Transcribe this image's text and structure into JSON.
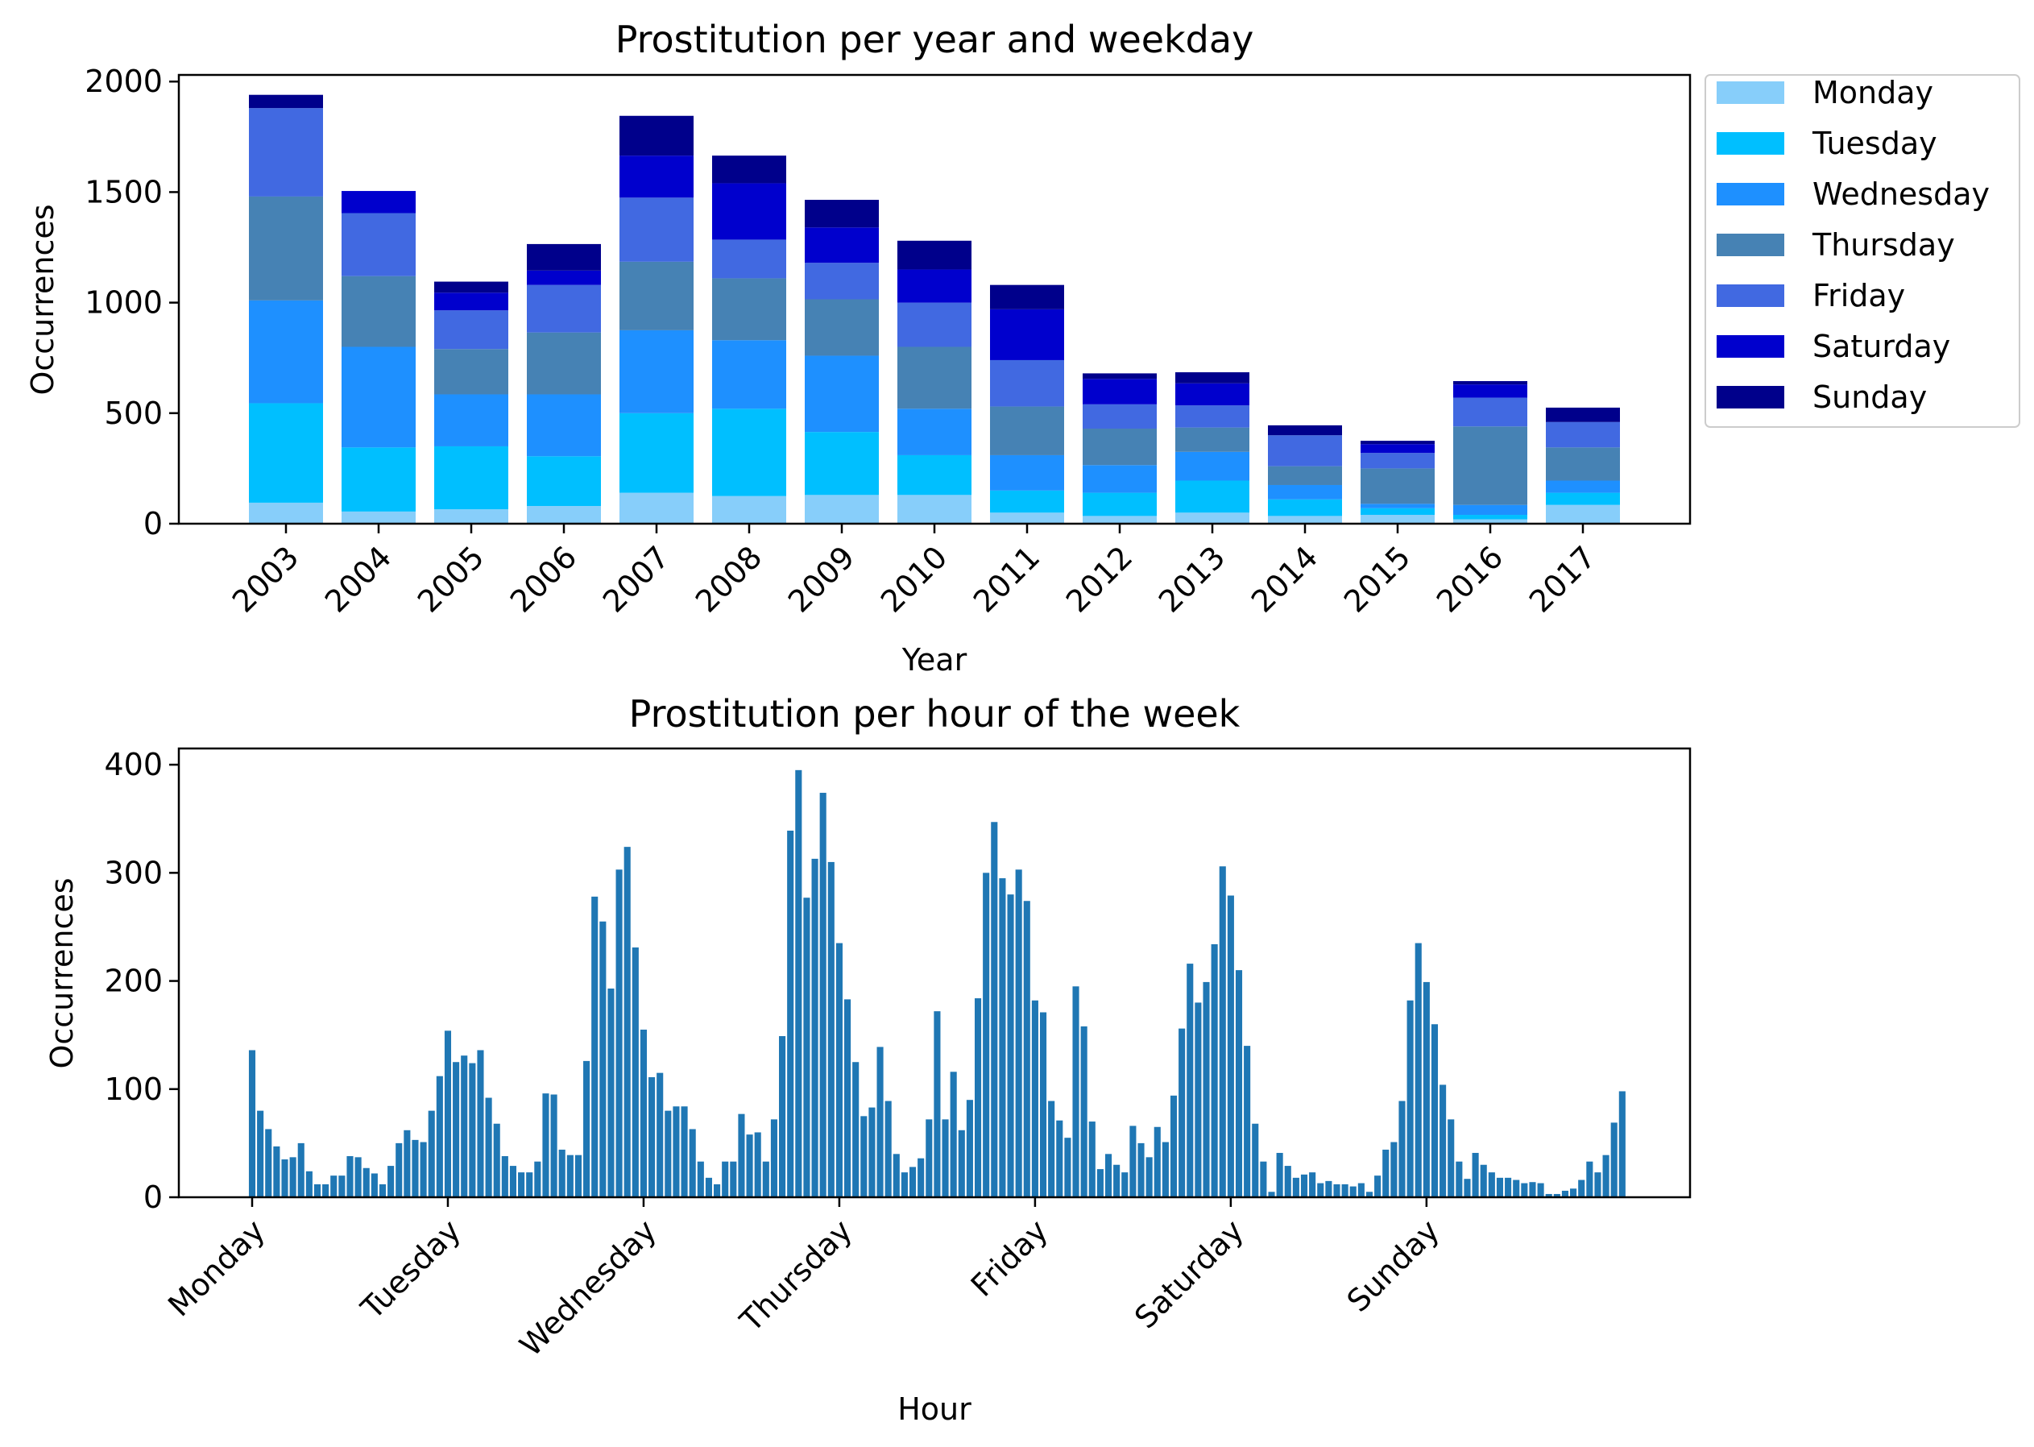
{
  "chart_data": [
    {
      "type": "bar",
      "stacked": true,
      "title": "Prostitution per year and weekday",
      "xlabel": "Year",
      "ylabel": "Occurrences",
      "ylim": [
        0,
        2030
      ],
      "yticks": [
        0,
        500,
        1000,
        1500,
        2000
      ],
      "categories": [
        "2003",
        "2004",
        "2005",
        "2006",
        "2007",
        "2008",
        "2009",
        "2010",
        "2011",
        "2012",
        "2013",
        "2014",
        "2015",
        "2016",
        "2017"
      ],
      "legend_position": "outside-right",
      "grid": false,
      "series": [
        {
          "name": "Monday",
          "color": "#87cefa",
          "values": [
            95,
            55,
            65,
            80,
            140,
            125,
            130,
            130,
            50,
            35,
            50,
            35,
            40,
            20,
            85
          ]
        },
        {
          "name": "Tuesday",
          "color": "#00bfff",
          "values": [
            450,
            290,
            285,
            225,
            360,
            395,
            285,
            180,
            100,
            105,
            145,
            75,
            30,
            20,
            55
          ]
        },
        {
          "name": "Wednesday",
          "color": "#1e90ff",
          "values": [
            465,
            455,
            235,
            280,
            375,
            310,
            345,
            210,
            160,
            125,
            130,
            65,
            20,
            45,
            55
          ]
        },
        {
          "name": "Thursday",
          "color": "#4682b4",
          "values": [
            470,
            320,
            205,
            280,
            310,
            280,
            255,
            280,
            220,
            165,
            110,
            85,
            160,
            355,
            150
          ]
        },
        {
          "name": "Friday",
          "color": "#4169e1",
          "values": [
            400,
            285,
            175,
            215,
            290,
            175,
            165,
            200,
            210,
            110,
            100,
            140,
            70,
            130,
            115
          ]
        },
        {
          "name": "Saturday",
          "color": "#0000cd",
          "values": [
            0,
            100,
            80,
            65,
            190,
            255,
            160,
            150,
            230,
            115,
            100,
            0,
            40,
            60,
            0
          ]
        },
        {
          "name": "Sunday",
          "color": "#00008b",
          "values": [
            60,
            0,
            50,
            120,
            180,
            125,
            125,
            130,
            110,
            25,
            50,
            45,
            15,
            15,
            65
          ]
        }
      ]
    },
    {
      "type": "bar",
      "title": "Prostitution per hour of the week",
      "xlabel": "Hour",
      "ylabel": "Occurrences",
      "ylim": [
        0,
        415
      ],
      "yticks": [
        0,
        100,
        200,
        300,
        400
      ],
      "xtick_labels": [
        "Monday",
        "Tuesday",
        "Wednesday",
        "Thursday",
        "Friday",
        "Saturday",
        "Sunday"
      ],
      "xtick_hours": [
        0,
        24,
        48,
        72,
        96,
        120,
        144
      ],
      "bar_color": "#1f77b4",
      "grid": false,
      "values": [
        136,
        80,
        63,
        47,
        35,
        37,
        50,
        24,
        12,
        12,
        20,
        20,
        38,
        37,
        27,
        22,
        12,
        29,
        50,
        62,
        53,
        51,
        80,
        112,
        154,
        125,
        131,
        124,
        136,
        92,
        68,
        38,
        29,
        23,
        23,
        33,
        96,
        95,
        44,
        39,
        39,
        126,
        278,
        255,
        193,
        303,
        324,
        231,
        155,
        111,
        115,
        80,
        84,
        84,
        63,
        33,
        18,
        12,
        33,
        33,
        77,
        58,
        60,
        33,
        72,
        149,
        339,
        395,
        277,
        313,
        374,
        310,
        235,
        183,
        125,
        75,
        83,
        139,
        89,
        40,
        23,
        28,
        36,
        72,
        172,
        72,
        116,
        62,
        90,
        184,
        300,
        347,
        295,
        280,
        303,
        274,
        182,
        171,
        89,
        71,
        55,
        195,
        158,
        70,
        26,
        40,
        30,
        23,
        66,
        50,
        37,
        65,
        51,
        94,
        156,
        216,
        180,
        199,
        234,
        306,
        279,
        210,
        140,
        68,
        33,
        5,
        41,
        29,
        18,
        21,
        23,
        13,
        15,
        12,
        12,
        10,
        13,
        5,
        20,
        44,
        51,
        89,
        182,
        235,
        199,
        160,
        104,
        72,
        33,
        17,
        41,
        30,
        23,
        18,
        18,
        16,
        13,
        14,
        13,
        3,
        3,
        6,
        8,
        16,
        33,
        23,
        39,
        69,
        98
      ]
    }
  ]
}
